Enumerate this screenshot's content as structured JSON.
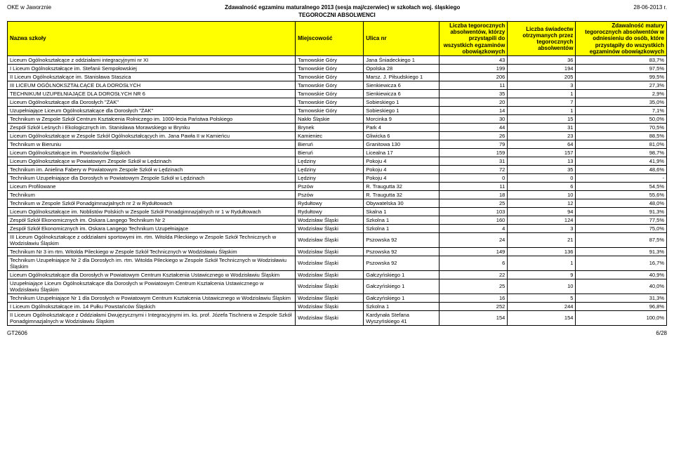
{
  "header": {
    "left": "OKE w Jaworznie",
    "center": "Zdawalność egzaminu maturalnego 2013 (sesja maj/czerwiec) w szkołach woj. śląskiego",
    "right": "28-06-2013 r.",
    "sub": "TEGOROCZNI ABSOLWENCI"
  },
  "columns": {
    "name": "Nazwa szkoły",
    "city": "Miejscowość",
    "street": "Ulica nr",
    "n1": "Liczba tegorocznych absolwentów, którzy przystąpili do wszystkich egzaminów obowiązkowych",
    "n2": "Liczba świadectw otrzymanych przez tegorocznych absolwentów",
    "n3": "Zdawalność matury tegorocznych absolwentów w odniesieniu do osób, które przystąpiły do wszystkich egzaminów obowiązkowych"
  },
  "rows": [
    {
      "name": "Liceum Ogólnokształcące z oddziałami integracyjnymi nr XI",
      "city": "Tarnowskie Góry",
      "street": "Jana Śniadeckiego 1",
      "n1": "43",
      "n2": "36",
      "n3": "83,7%"
    },
    {
      "name": "I Liceum Ogólnokształcące im. Stefanii Sempołowskiej",
      "city": "Tarnowskie Góry",
      "street": "Opolska 28",
      "n1": "199",
      "n2": "194",
      "n3": "97,5%"
    },
    {
      "name": "II Liceum Ogólnokształcące im. Stanisława Staszica",
      "city": "Tarnowskie Góry",
      "street": "Marsz. J. Piłsudskiego 1",
      "n1": "206",
      "n2": "205",
      "n3": "99,5%"
    },
    {
      "name": "III LICEUM OGÓLNOKSZTAŁCĄCE DLA DOROSŁYCH",
      "city": "Tarnowskie Góry",
      "street": "Sienkiewicza 6",
      "n1": "11",
      "n2": "3",
      "n3": "27,3%"
    },
    {
      "name": "TECHNIKUM UZUPEŁNIAJĄCE DLA DOROSŁYCH NR 6",
      "city": "Tarnowskie Góry",
      "street": "Sienkiewicza 6",
      "n1": "35",
      "n2": "1",
      "n3": "2,9%"
    },
    {
      "name": "Liceum Ogólnokształcące dla Dorosłych \"ŻAK\"",
      "city": "Tarnowskie Góry",
      "street": "Sobieskiego 1",
      "n1": "20",
      "n2": "7",
      "n3": "35,0%"
    },
    {
      "name": "Uzupełniające Liceum Ogólnokształcące dla Dorosłych \"ŻAK\"",
      "city": "Tarnowskie Góry",
      "street": "Sobieskiego 1",
      "n1": "14",
      "n2": "1",
      "n3": "7,1%"
    },
    {
      "name": "Technikum w Zespole Szkół Centrum Kształcenia Rolniczego im. 1000-lecia Państwa Polskiego",
      "city": "Nakło Śląskie",
      "street": "Morcinka 9",
      "n1": "30",
      "n2": "15",
      "n3": "50,0%"
    },
    {
      "name": "Zespół Szkół Leśnych i Ekologicznych im. Stanisława Morawskiego w Brynku",
      "city": "Brynek",
      "street": "Park 4",
      "n1": "44",
      "n2": "31",
      "n3": "70,5%"
    },
    {
      "name": "Liceum Ogólnokształcące w Zespole Szkół Ogólnokształcących im. Jana Pawła II w Kamieńcu",
      "city": "Kamieniec",
      "street": "Gliwicka 6",
      "n1": "26",
      "n2": "23",
      "n3": "88,5%"
    },
    {
      "name": "Technikum w Bieruniu",
      "city": "Bieruń",
      "street": "Granitowa 130",
      "n1": "79",
      "n2": "64",
      "n3": "81,0%"
    },
    {
      "name": "Liceum Ogólnokształcące im. Powstańców Śląskich",
      "city": "Bieruń",
      "street": "Licealna 17",
      "n1": "159",
      "n2": "157",
      "n3": "98,7%"
    },
    {
      "name": "Liceum Ogólnokształcące w Powiatowym Zespole Szkół w Lędzinach",
      "city": "Lędziny",
      "street": "Pokoju 4",
      "n1": "31",
      "n2": "13",
      "n3": "41,9%"
    },
    {
      "name": "Technikum im. Anielina Fabery w Powiatowym Zespole Szkół w Lędzinach",
      "city": "Lędziny",
      "street": "Pokoju 4",
      "n1": "72",
      "n2": "35",
      "n3": "48,6%"
    },
    {
      "name": "Technikum Uzupełniające dla Dorosłych w Powiatowym Zespole Szkół w Lędzinach",
      "city": "Lędziny",
      "street": "Pokoju 4",
      "n1": "0",
      "n2": "0",
      "n3": "-"
    },
    {
      "name": "Liceum Profilowane",
      "city": "Pszów",
      "street": "R. Traugutta 32",
      "n1": "11",
      "n2": "6",
      "n3": "54,5%"
    },
    {
      "name": "Technikum",
      "city": "Pszów",
      "street": "R. Traugutta 32",
      "n1": "18",
      "n2": "10",
      "n3": "55,6%"
    },
    {
      "name": "Technikum w Zespole Szkół Ponadgimnazjalnych nr 2 w Rydułtowach",
      "city": "Rydułtowy",
      "street": "Obywatelska 30",
      "n1": "25",
      "n2": "12",
      "n3": "48,0%"
    },
    {
      "name": "Liceum Ogólnokształcące im. Noblistów Polskich w Zespole Szkół Ponadgimnazjalnych nr 1 w Rydułtowach",
      "city": "Rydułtowy",
      "street": "Skalna 1",
      "n1": "103",
      "n2": "94",
      "n3": "91,3%"
    },
    {
      "name": "Zespół Szkół Ekonomicznych im. Oskara Langego Technikum Nr 2",
      "city": "Wodzisław Śląski",
      "street": "Szkolna 1",
      "n1": "160",
      "n2": "124",
      "n3": "77,5%"
    },
    {
      "name": "Zespół Szkół Ekonomicznych im. Oskara Langego Technikum Uzupełniające",
      "city": "Wodzisław Śląski",
      "street": "Szkolna 1",
      "n1": "4",
      "n2": "3",
      "n3": "75,0%"
    },
    {
      "name": "III Liceum Ogólnokształcące z oddziałami sportowymi im. rtm. Witolda Pileckiego w Zespole Szkół Technicznych w Wodzisławiu Śląskim",
      "city": "Wodzisław Śląski",
      "street": "Pszowska 92",
      "n1": "24",
      "n2": "21",
      "n3": "87,5%"
    },
    {
      "name": "Technikum Nr 3 im rtm. Witolda Pileckiego w Zespole Szkół Technicznych w Wodzisławiu Śląskim",
      "city": "Wodzisław Śląski",
      "street": "Pszowska 92",
      "n1": "149",
      "n2": "136",
      "n3": "91,3%"
    },
    {
      "name": "Technikum Uzupełniające Nr 2 dla Dorosłych im. rtm. Witolda Pileckiego w Zespole Szkół Technicznych w Wodzisławiu Śląskim",
      "city": "Wodzisław Śląski",
      "street": "Pszowska 92",
      "n1": "6",
      "n2": "1",
      "n3": "16,7%"
    },
    {
      "name": "Liceum Ogólnokształcące dla Dorosłych w Powiatowym Centrum Kształcenia Ustawicznego w Wodzisławiu Śląskim",
      "city": "Wodzisław Śląski",
      "street": "Gałczyńskiego 1",
      "n1": "22",
      "n2": "9",
      "n3": "40,9%"
    },
    {
      "name": "Uzupełniające Liceum Ogólnokształcące dla Dorosłych w Powiatowym Centrum Kształcenia Ustawicznego w Wodzisławiu Śląskim",
      "city": "Wodzisław Śląski",
      "street": "Gałczyńskiego 1",
      "n1": "25",
      "n2": "10",
      "n3": "40,0%"
    },
    {
      "name": "Technikum Uzupełniające Nr 1 dla Dorosłych w Powiatowym Centrum Kształcenia Ustawicznego w Wodzisławiu Śląskim",
      "city": "Wodzisław Śląski",
      "street": "Gałczyńskiego 1",
      "n1": "16",
      "n2": "5",
      "n3": "31,3%"
    },
    {
      "name": "I Liceum Ogólnokształcące im. 14 Pułku Powstańców Śląskich",
      "city": "Wodzisław Śląski",
      "street": "Szkolna 1",
      "n1": "252",
      "n2": "244",
      "n3": "96,8%"
    },
    {
      "name": "II Liceum Ogólnokształcące z Oddziałami Dwujęzycznymi i Integracyjnymi im. ks. prof. Józefa Tischnera w Zespole Szkół Ponadgimnazjalnych w Wodzisławiu Śląskim",
      "city": "Wodzisław Śląski",
      "street": "Kardynała Stefana Wyszyńskiego 41",
      "n1": "154",
      "n2": "154",
      "n3": "100,0%"
    }
  ],
  "footer": {
    "left": "GT2606",
    "right": "6/28"
  },
  "style": {
    "header_bg": "#ffff00",
    "border_color": "#000000",
    "font_body": "7.5",
    "font_header": "8"
  }
}
